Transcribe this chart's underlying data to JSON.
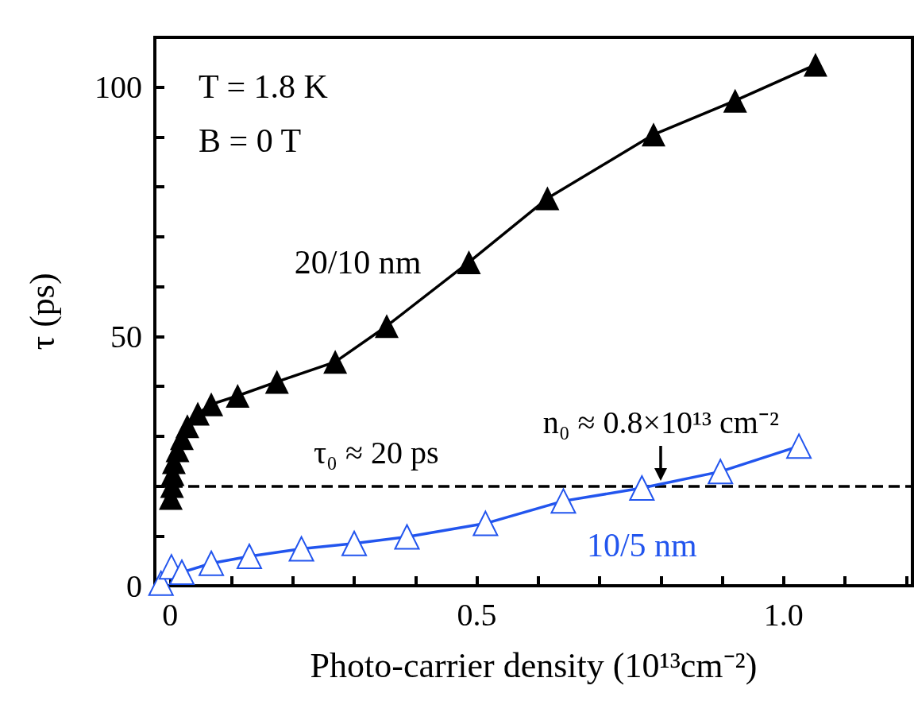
{
  "chart_data": {
    "type": "line",
    "xlabel": "Photo-carrier density (10¹³cm⁻²)",
    "ylabel": "τ (ps)",
    "xlim": [
      -0.025,
      1.21
    ],
    "ylim": [
      0,
      110
    ],
    "xticks": [
      0,
      {
        "value": 0.1,
        "label": null
      },
      {
        "value": 0.2,
        "label": null
      },
      {
        "value": 0.3,
        "label": null
      },
      {
        "value": 0.4,
        "label": null
      },
      0.5,
      {
        "value": 0.6,
        "label": null
      },
      {
        "value": 0.7,
        "label": null
      },
      {
        "value": 0.8,
        "label": null
      },
      {
        "value": 0.9,
        "label": null
      },
      {
        "value": 1.0,
        "label": "1.0"
      },
      {
        "value": 1.1,
        "label": null
      },
      {
        "value": 1.2,
        "label": null
      }
    ],
    "yticks": [
      0,
      {
        "value": 10,
        "label": null
      },
      {
        "value": 20,
        "label": null
      },
      {
        "value": 30,
        "label": null
      },
      {
        "value": 40,
        "label": null
      },
      50,
      {
        "value": 60,
        "label": null
      },
      {
        "value": 70,
        "label": null
      },
      {
        "value": 80,
        "label": null
      },
      {
        "value": 90,
        "label": null
      },
      100
    ],
    "marker": "triangle",
    "series": [
      {
        "name": "20/10 nm",
        "color": "#000000",
        "x": [
          0.001,
          0.003,
          0.004,
          0.006,
          0.012,
          0.019,
          0.028,
          0.045,
          0.067,
          0.11,
          0.174,
          0.269,
          0.353,
          0.487,
          0.615,
          0.788,
          0.921,
          1.052
        ],
        "values": [
          17.6,
          20,
          22.4,
          24.8,
          27.2,
          29.6,
          32,
          34.5,
          36.4,
          38.1,
          40.9,
          44.9,
          52.1,
          64.9,
          77.7,
          90.5,
          97.3,
          104.5
        ]
      },
      {
        "name": "10/5 nm",
        "color": "#2255ee",
        "x": [
          -0.015,
          0.002,
          0.019,
          0.067,
          0.129,
          0.214,
          0.3,
          0.386,
          0.514,
          0.641,
          0.769,
          0.897,
          1.025
        ],
        "values": [
          0.5,
          3.8,
          2.7,
          4.5,
          5.9,
          7.4,
          8.5,
          9.8,
          12.5,
          17.0,
          19.6,
          22.9,
          28.0
        ]
      }
    ],
    "ref_lines": [
      {
        "axis": "y",
        "value": 20,
        "label": "τ₀ ≈ 20 ps",
        "color": "#000000",
        "line_style": "dashed"
      }
    ],
    "annotations": [
      "T = 1.8 K",
      "B = 0 T",
      {
        "text": "n₀ ≈ 0.8×10¹³ cm⁻²",
        "x": 0.8,
        "y": 21
      }
    ]
  }
}
